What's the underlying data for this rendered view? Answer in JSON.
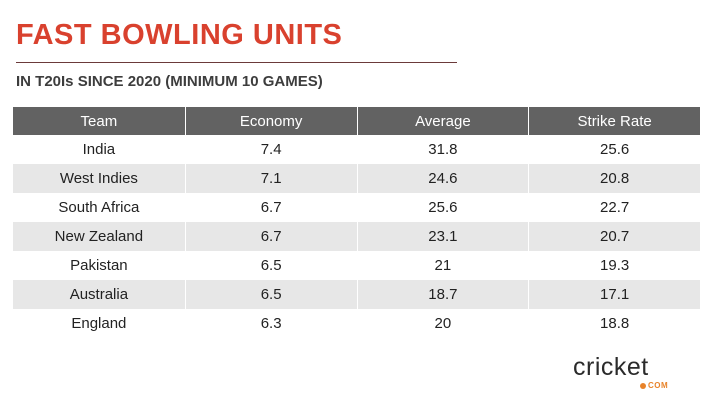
{
  "title": "FAST BOWLING UNITS",
  "subtitle": "IN T20Is SINCE 2020 (MINIMUM 10 GAMES)",
  "logo": {
    "text": "cricket",
    "suffix": "COM"
  },
  "colors": {
    "title": "#d9412e",
    "header_bg": "#626262",
    "row_alt": "#e7e7e7",
    "logo_accent": "#e8832a"
  },
  "chart_data": {
    "type": "table",
    "columns": [
      "Team",
      "Economy",
      "Average",
      "Strike Rate"
    ],
    "rows": [
      [
        "India",
        "7.4",
        "31.8",
        "25.6"
      ],
      [
        "West Indies",
        "7.1",
        "24.6",
        "20.8"
      ],
      [
        "South Africa",
        "6.7",
        "25.6",
        "22.7"
      ],
      [
        "New Zealand",
        "6.7",
        "23.1",
        "20.7"
      ],
      [
        "Pakistan",
        "6.5",
        "21",
        "19.3"
      ],
      [
        "Australia",
        "6.5",
        "18.7",
        "17.1"
      ],
      [
        "England",
        "6.3",
        "20",
        "18.8"
      ]
    ]
  }
}
